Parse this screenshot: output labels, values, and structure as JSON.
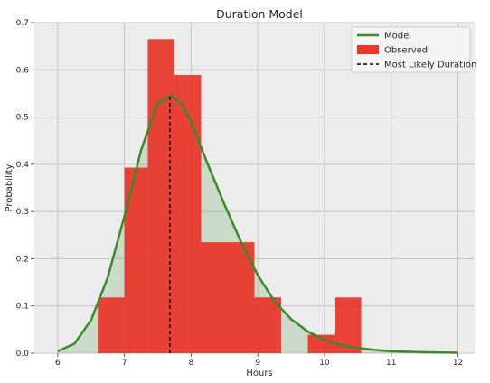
{
  "chart_data": {
    "type": "histogram+line",
    "title": "Duration Model",
    "xlabel": "Hours",
    "ylabel": "Probability",
    "xlim": [
      5.65,
      12.25
    ],
    "ylim": [
      0,
      0.7
    ],
    "xticks": [
      "6",
      "7",
      "8",
      "9",
      "10",
      "11",
      "12"
    ],
    "xtick_values": [
      6,
      7,
      8,
      9,
      10,
      11,
      12
    ],
    "yticks": [
      "0.0",
      "0.1",
      "0.2",
      "0.3",
      "0.4",
      "0.5",
      "0.6",
      "0.7"
    ],
    "ytick_values": [
      0,
      0.1,
      0.2,
      0.3,
      0.4,
      0.5,
      0.6,
      0.7
    ],
    "grid": true,
    "legend_position": "top-right",
    "legend": [
      {
        "label": "Model",
        "kind": "line",
        "color": "#3a8a2a"
      },
      {
        "label": "Observed",
        "kind": "patch",
        "color": "#e8382c"
      },
      {
        "label": "Most Likely Duration",
        "kind": "dashed",
        "color": "#000000"
      }
    ],
    "observed_bins": [
      {
        "x0": 6.6,
        "x1": 7.0,
        "value": 0.118
      },
      {
        "x0": 7.0,
        "x1": 7.35,
        "value": 0.393
      },
      {
        "x0": 7.35,
        "x1": 7.75,
        "value": 0.665
      },
      {
        "x0": 7.75,
        "x1": 8.15,
        "value": 0.589
      },
      {
        "x0": 8.15,
        "x1": 8.95,
        "value": 0.235
      },
      {
        "x0": 8.95,
        "x1": 9.35,
        "value": 0.118
      },
      {
        "x0": 9.75,
        "x1": 10.15,
        "value": 0.039
      },
      {
        "x0": 10.15,
        "x1": 10.55,
        "value": 0.118
      }
    ],
    "model_curve": {
      "x": [
        6.0,
        6.25,
        6.5,
        6.75,
        7.0,
        7.25,
        7.5,
        7.7,
        7.85,
        8.0,
        8.25,
        8.5,
        8.75,
        9.0,
        9.25,
        9.5,
        9.75,
        10.0,
        10.25,
        10.5,
        10.75,
        11.0,
        11.5,
        12.0
      ],
      "y": [
        0.004,
        0.02,
        0.07,
        0.16,
        0.29,
        0.43,
        0.53,
        0.545,
        0.53,
        0.49,
        0.4,
        0.315,
        0.235,
        0.165,
        0.11,
        0.072,
        0.046,
        0.028,
        0.017,
        0.011,
        0.007,
        0.004,
        0.002,
        0.001
      ]
    },
    "most_likely_duration": {
      "x": 7.68,
      "y_top": 0.545
    }
  }
}
